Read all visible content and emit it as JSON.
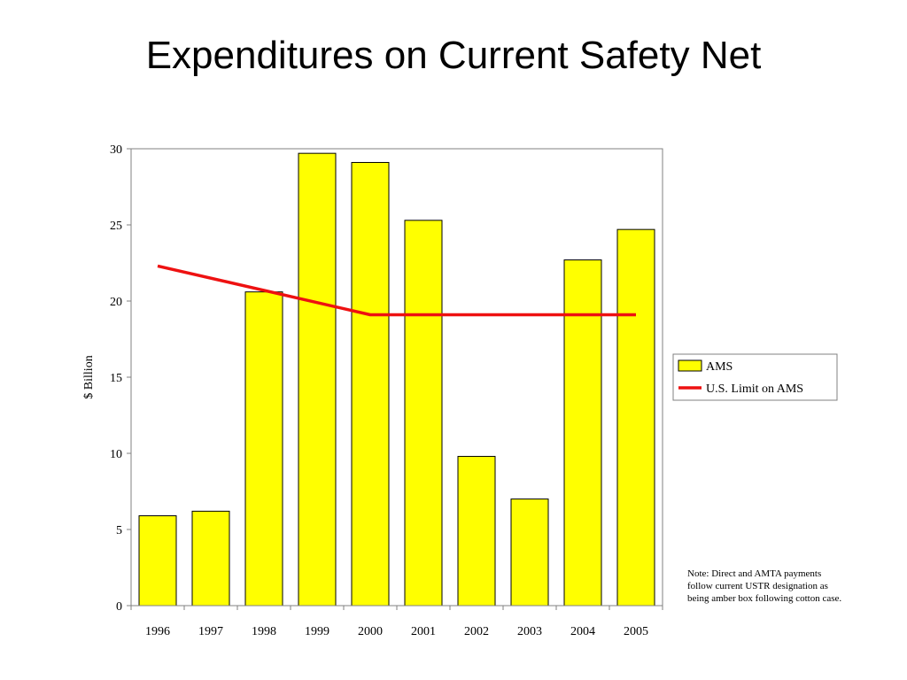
{
  "slide": {
    "title": "Expenditures on Current Safety Net",
    "note": "Note: Direct and AMTA payments follow current USTR designation as being amber box following cotton case."
  },
  "colors": {
    "bar_fill": "#ffff00",
    "bar_stroke": "#000000",
    "limit_line": "#ee1111",
    "axis": "#808080"
  },
  "chart_data": {
    "type": "bar",
    "title": "Expenditures on Current Safety Net",
    "ylabel": "$ Billion",
    "xlabel": "",
    "ylim": [
      0,
      30
    ],
    "yticks": [
      0,
      5,
      10,
      15,
      20,
      25,
      30
    ],
    "categories": [
      "1996",
      "1997",
      "1998",
      "1999",
      "2000",
      "2001",
      "2002",
      "2003",
      "2004",
      "2005"
    ],
    "series": [
      {
        "name": "AMS",
        "type": "bar",
        "values": [
          5.9,
          6.2,
          20.6,
          29.7,
          29.1,
          25.3,
          9.8,
          7.0,
          22.7,
          24.7
        ]
      },
      {
        "name": "U.S. Limit on AMS",
        "type": "line",
        "values": [
          22.3,
          null,
          null,
          null,
          19.1,
          19.1,
          19.1,
          19.1,
          19.1,
          19.1
        ]
      }
    ],
    "grid": false,
    "legend": "right"
  }
}
